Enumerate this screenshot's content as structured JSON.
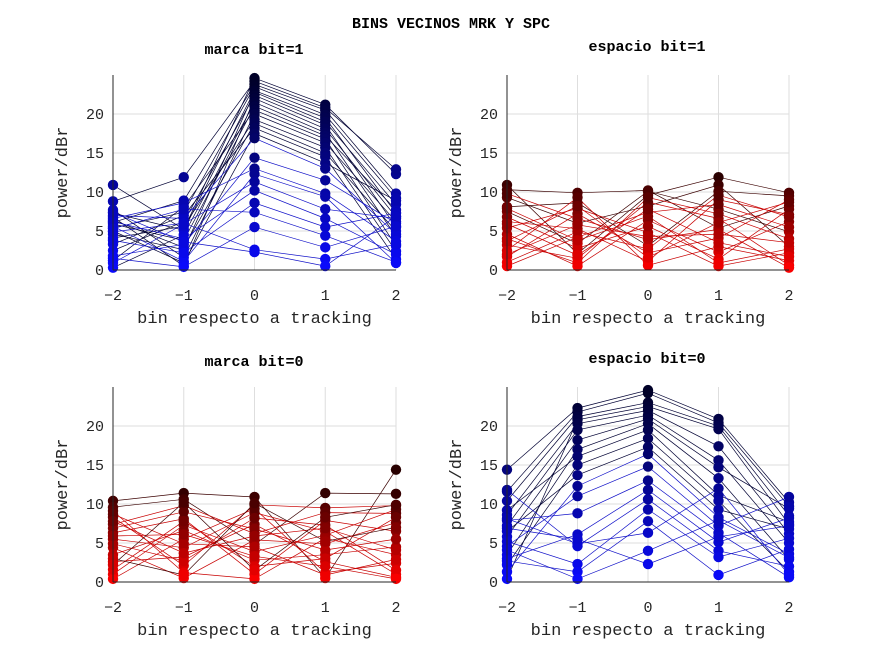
{
  "chart_data": {
    "type": "line",
    "title": "BINS VECINOS MRK Y SPC",
    "panels": [
      {
        "id": "marca-bit1",
        "title": "marca bit=1",
        "xlabel": "bin respecto a tracking",
        "ylabel": "power/dBr",
        "x": [
          -2,
          -1,
          0,
          1,
          2
        ],
        "xticks": [
          "-2",
          "-1",
          "0",
          "1",
          "2"
        ],
        "yticks": [
          "0",
          "5",
          "10",
          "15",
          "20"
        ],
        "xlim": [
          -2,
          2
        ],
        "ylim": [
          0,
          25
        ],
        "grid": true,
        "colormap": "blue",
        "series": [
          {
            "values": [
              10.9,
              5.2,
              24.6,
              21.2,
              12.3
            ]
          },
          {
            "values": [
              8.8,
              11.9,
              24.2,
              20.8,
              12.9
            ]
          },
          {
            "values": [
              6.1,
              8.9,
              23.8,
              20.5,
              9.8
            ]
          },
          {
            "values": [
              5.4,
              7.4,
              23.5,
              19.9,
              9.2
            ]
          },
          {
            "values": [
              7.3,
              5.1,
              23.0,
              19.5,
              7.3
            ]
          },
          {
            "values": [
              4.6,
              2.6,
              22.8,
              19.0,
              8.4
            ]
          },
          {
            "values": [
              2.5,
              6.2,
              22.4,
              18.6,
              5.5
            ]
          },
          {
            "values": [
              6.8,
              0.5,
              22.0,
              18.1,
              6.8
            ]
          },
          {
            "values": [
              0.3,
              4.5,
              21.5,
              17.6,
              4.3
            ]
          },
          {
            "values": [
              5.9,
              3.8,
              21.0,
              17.2,
              7.7
            ]
          },
          {
            "values": [
              1.2,
              8.1,
              20.5,
              16.8,
              3.1
            ]
          },
          {
            "values": [
              7.7,
              1.6,
              20.0,
              16.3,
              6.2
            ]
          },
          {
            "values": [
              4.1,
              5.6,
              19.3,
              15.7,
              2.4
            ]
          },
          {
            "values": [
              6.4,
              2.9,
              18.8,
              15.0,
              5.0
            ]
          },
          {
            "values": [
              3.3,
              7.0,
              18.2,
              14.5,
              1.4
            ]
          },
          {
            "values": [
              5.0,
              0.9,
              17.5,
              13.7,
              8.9
            ]
          },
          {
            "values": [
              7.0,
              6.6,
              16.9,
              13.0,
              4.6
            ]
          },
          {
            "values": [
              1.8,
              3.3,
              14.4,
              11.5,
              6.0
            ]
          },
          {
            "values": [
              6.6,
              8.6,
              13.0,
              9.8,
              3.7
            ]
          },
          {
            "values": [
              5.6,
              1.1,
              12.3,
              9.4,
              0.9
            ]
          },
          {
            "values": [
              0.9,
              5.9,
              11.3,
              7.8,
              6.6
            ]
          },
          {
            "values": [
              6.2,
              4.0,
              10.2,
              6.6,
              2.0
            ]
          },
          {
            "values": [
              3.8,
              2.2,
              8.6,
              5.5,
              7.3
            ]
          },
          {
            "values": [
              5.3,
              7.8,
              7.4,
              4.4,
              1.0
            ]
          },
          {
            "values": [
              1.5,
              0.4,
              5.5,
              2.9,
              5.6
            ]
          },
          {
            "values": [
              4.9,
              6.0,
              2.6,
              1.4,
              3.3
            ]
          },
          {
            "values": [
              7.4,
              3.6,
              2.3,
              0.5,
              6.9
            ]
          }
        ]
      },
      {
        "id": "espacio-bit1",
        "title": "espacio bit=1",
        "xlabel": "bin respecto a tracking",
        "ylabel": "power/dBr",
        "x": [
          -2,
          -1,
          0,
          1,
          2
        ],
        "xticks": [
          "-2",
          "-1",
          "0",
          "1",
          "2"
        ],
        "yticks": [
          "0",
          "5",
          "10",
          "15",
          "20"
        ],
        "xlim": [
          -2,
          2
        ],
        "ylim": [
          0,
          25
        ],
        "grid": true,
        "colormap": "red",
        "series": [
          {
            "values": [
              10.9,
              2.1,
              9.6,
              11.9,
              9.9
            ]
          },
          {
            "values": [
              10.3,
              9.9,
              10.2,
              5.4,
              8.2
            ]
          },
          {
            "values": [
              9.3,
              6.0,
              8.2,
              10.9,
              3.0
            ]
          },
          {
            "values": [
              8.1,
              8.6,
              3.1,
              10.1,
              9.5
            ]
          },
          {
            "values": [
              7.5,
              3.4,
              10.1,
              7.8,
              4.9
            ]
          },
          {
            "values": [
              6.2,
              5.3,
              1.1,
              9.0,
              7.1
            ]
          },
          {
            "values": [
              4.6,
              0.5,
              6.4,
              2.3,
              6.2
            ]
          },
          {
            "values": [
              5.4,
              7.9,
              4.8,
              0.5,
              2.2
            ]
          },
          {
            "values": [
              3.2,
              1.5,
              8.7,
              6.6,
              0.6
            ]
          },
          {
            "values": [
              1.7,
              7.2,
              2.2,
              4.1,
              9.0
            ]
          },
          {
            "values": [
              0.5,
              4.2,
              7.4,
              8.4,
              5.5
            ]
          },
          {
            "values": [
              2.5,
              9.3,
              0.6,
              3.0,
              1.2
            ]
          },
          {
            "values": [
              6.8,
              2.8,
              5.6,
              1.4,
              7.8
            ]
          },
          {
            "values": [
              9.8,
              6.6,
              3.9,
              5.2,
              0.3
            ]
          },
          {
            "values": [
              4.0,
              0.9,
              9.3,
              7.2,
              4.0
            ]
          },
          {
            "values": [
              1.0,
              4.9,
              2.7,
              9.6,
              6.8
            ]
          },
          {
            "values": [
              7.9,
              3.8,
              6.9,
              0.9,
              2.7
            ]
          },
          {
            "values": [
              3.7,
              8.2,
              1.6,
              6.1,
              8.7
            ]
          },
          {
            "values": [
              5.9,
              1.9,
              7.8,
              3.5,
              1.7
            ]
          },
          {
            "values": [
              2.0,
              5.8,
              4.3,
              4.6,
              3.5
            ]
          }
        ]
      },
      {
        "id": "marca-bit0",
        "title": "marca bit=0",
        "xlabel": "bin respecto a tracking",
        "ylabel": "power/dBr",
        "x": [
          -2,
          -1,
          0,
          1,
          2
        ],
        "xticks": [
          "-2",
          "-1",
          "0",
          "1",
          "2"
        ],
        "yticks": [
          "0",
          "5",
          "10",
          "15",
          "20"
        ],
        "xlim": [
          -2,
          2
        ],
        "ylim": [
          0,
          25
        ],
        "grid": true,
        "colormap": "red",
        "series": [
          {
            "values": [
              10.4,
              11.4,
              10.9,
              0.5,
              14.4
            ]
          },
          {
            "values": [
              9.6,
              10.6,
              4.8,
              11.4,
              11.3
            ]
          },
          {
            "values": [
              8.3,
              2.1,
              9.9,
              9.5,
              9.8
            ]
          },
          {
            "values": [
              7.4,
              9.8,
              6.2,
              8.9,
              8.8
            ]
          },
          {
            "values": [
              6.3,
              8.1,
              1.0,
              7.9,
              6.5
            ]
          },
          {
            "values": [
              5.5,
              4.4,
              8.9,
              6.5,
              1.0
            ]
          },
          {
            "values": [
              4.4,
              0.5,
              5.4,
              4.9,
              7.6
            ]
          },
          {
            "values": [
              3.5,
              6.6,
              2.8,
              3.5,
              4.5
            ]
          },
          {
            "values": [
              2.6,
              3.2,
              7.4,
              2.6,
              0.6
            ]
          },
          {
            "values": [
              1.0,
              7.3,
              3.9,
              6.0,
              9.3
            ]
          },
          {
            "values": [
              0.4,
              5.5,
              9.4,
              1.2,
              2.4
            ]
          },
          {
            "values": [
              9.1,
              1.2,
              0.4,
              5.6,
              3.5
            ]
          },
          {
            "values": [
              6.9,
              9.0,
              6.8,
              4.1,
              5.5
            ]
          },
          {
            "values": [
              4.9,
              2.7,
              8.2,
              7.3,
              1.5
            ]
          },
          {
            "values": [
              1.6,
              7.8,
              2.0,
              3.0,
              8.3
            ]
          },
          {
            "values": [
              8.7,
              4.9,
              4.5,
              0.9,
              2.9
            ]
          },
          {
            "values": [
              3.0,
              0.9,
              10.1,
              5.2,
              7.0
            ]
          },
          {
            "values": [
              5.9,
              6.1,
              3.3,
              2.0,
              0.4
            ]
          },
          {
            "values": [
              7.8,
              3.7,
              5.9,
              6.9,
              4.1
            ]
          },
          {
            "values": [
              2.2,
              10.2,
              1.5,
              8.3,
              9.9
            ]
          }
        ]
      },
      {
        "id": "espacio-bit0",
        "title": "espacio bit=0",
        "xlabel": "bin respecto a tracking",
        "ylabel": "power/dBr",
        "x": [
          -2,
          -1,
          0,
          1,
          2
        ],
        "xticks": [
          "-2",
          "-1",
          "0",
          "1",
          "2"
        ],
        "yticks": [
          "0",
          "5",
          "10",
          "15",
          "20"
        ],
        "xlim": [
          -2,
          2
        ],
        "ylim": [
          0,
          25
        ],
        "grid": true,
        "colormap": "blue",
        "series": [
          {
            "values": [
              14.4,
              22.3,
              24.6,
              20.9,
              10.2
            ]
          },
          {
            "values": [
              11.6,
              21.8,
              24.2,
              20.4,
              9.7
            ]
          },
          {
            "values": [
              10.4,
              21.2,
              23.0,
              20.0,
              8.5
            ]
          },
          {
            "values": [
              0.4,
              20.8,
              22.5,
              19.6,
              7.4
            ]
          },
          {
            "values": [
              8.6,
              20.3,
              22.0,
              17.4,
              6.2
            ]
          },
          {
            "values": [
              7.2,
              19.5,
              21.4,
              15.6,
              5.0
            ]
          },
          {
            "values": [
              5.8,
              18.2,
              20.9,
              14.7,
              9.4
            ]
          },
          {
            "values": [
              3.5,
              17.0,
              20.3,
              13.3,
              2.9
            ]
          },
          {
            "values": [
              9.2,
              16.1,
              19.5,
              11.1,
              7.7
            ]
          },
          {
            "values": [
              2.2,
              15.0,
              18.4,
              10.4,
              1.3
            ]
          },
          {
            "values": [
              6.5,
              13.7,
              17.3,
              9.3,
              6.8
            ]
          },
          {
            "values": [
              1.3,
              12.3,
              16.4,
              8.3,
              3.6
            ]
          },
          {
            "values": [
              4.6,
              11.0,
              14.8,
              7.2,
              10.9
            ]
          },
          {
            "values": [
              7.9,
              8.8,
              13.0,
              6.3,
              0.6
            ]
          },
          {
            "values": [
              3.0,
              6.1,
              11.8,
              5.1,
              8.2
            ]
          },
          {
            "values": [
              11.8,
              4.6,
              10.6,
              4.0,
              2.0
            ]
          },
          {
            "values": [
              5.2,
              2.3,
              9.3,
              3.2,
              5.6
            ]
          },
          {
            "values": [
              2.7,
              1.3,
              7.8,
              0.9,
              4.2
            ]
          },
          {
            "values": [
              8.1,
              4.9,
              6.3,
              12.0,
              0.9
            ]
          },
          {
            "values": [
              4.1,
              0.4,
              4.0,
              7.9,
              3.1
            ]
          },
          {
            "values": [
              6.9,
              5.5,
              2.3,
              5.8,
              7.2
            ]
          }
        ]
      }
    ]
  }
}
